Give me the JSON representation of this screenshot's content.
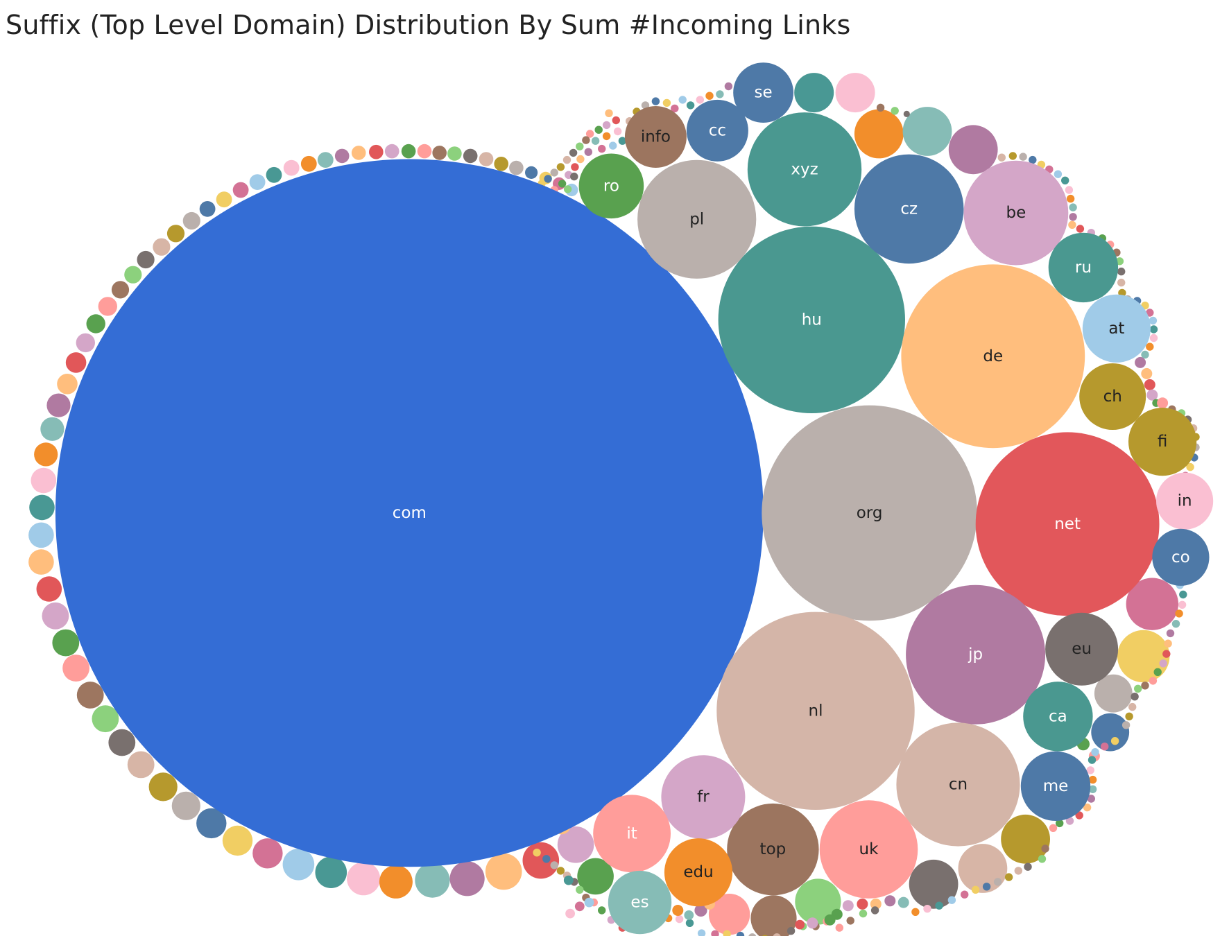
{
  "chart_data": {
    "type": "packed-bubble",
    "title": "Suffix (Top Level Domain) Distribution By Sum #Incoming Links",
    "labels_visible": true,
    "bubbles": [
      {
        "label": "com",
        "color": "#346dd5"
      },
      {
        "label": "org",
        "color": "#bab0ac"
      },
      {
        "label": "nl",
        "color": "#d4b5a8"
      },
      {
        "label": "hu",
        "color": "#4a9890"
      },
      {
        "label": "de",
        "color": "#ffbe7d"
      },
      {
        "label": "net",
        "color": "#e2575b"
      },
      {
        "label": "jp",
        "color": "#b07aa1"
      },
      {
        "label": "cn",
        "color": "#d4b5a8"
      },
      {
        "label": "pl",
        "color": "#bab0ac"
      },
      {
        "label": "xyz",
        "color": "#4a9890"
      },
      {
        "label": "be",
        "color": "#d4a6c8"
      },
      {
        "label": "cz",
        "color": "#4e79a7"
      },
      {
        "label": "uk",
        "color": "#ff9d9a"
      },
      {
        "label": "top",
        "color": "#9c755f"
      },
      {
        "label": "fr",
        "color": "#d4a6c8"
      },
      {
        "label": "it",
        "color": "#ff9d9a"
      },
      {
        "label": "edu",
        "color": "#f28e2b"
      },
      {
        "label": "es",
        "color": "#86bcb6"
      },
      {
        "label": "eu",
        "color": "#79706e"
      },
      {
        "label": "ca",
        "color": "#4a9890"
      },
      {
        "label": "me",
        "color": "#4e79a7"
      },
      {
        "label": "ro",
        "color": "#59a14f"
      },
      {
        "label": "info",
        "color": "#9c755f"
      },
      {
        "label": "cc",
        "color": "#4e79a7"
      },
      {
        "label": "se",
        "color": "#4e79a7"
      },
      {
        "label": "ru",
        "color": "#4a9890"
      },
      {
        "label": "at",
        "color": "#a0cbe8"
      },
      {
        "label": "ch",
        "color": "#b6992d"
      },
      {
        "label": "fi",
        "color": "#b6992d"
      },
      {
        "label": "in",
        "color": "#fabfd2"
      },
      {
        "label": "co",
        "color": "#4e79a7"
      }
    ],
    "palette": [
      "#4e79a7",
      "#a0cbe8",
      "#f28e2b",
      "#ffbe7d",
      "#59a14f",
      "#8cd17d",
      "#b6992d",
      "#f1ce63",
      "#499894",
      "#86bcb6",
      "#e15759",
      "#ff9d9a",
      "#79706e",
      "#bab0ac",
      "#d37295",
      "#fabfd2",
      "#b07aa1",
      "#d4a6c8",
      "#9d7660",
      "#d7b5a6"
    ]
  }
}
